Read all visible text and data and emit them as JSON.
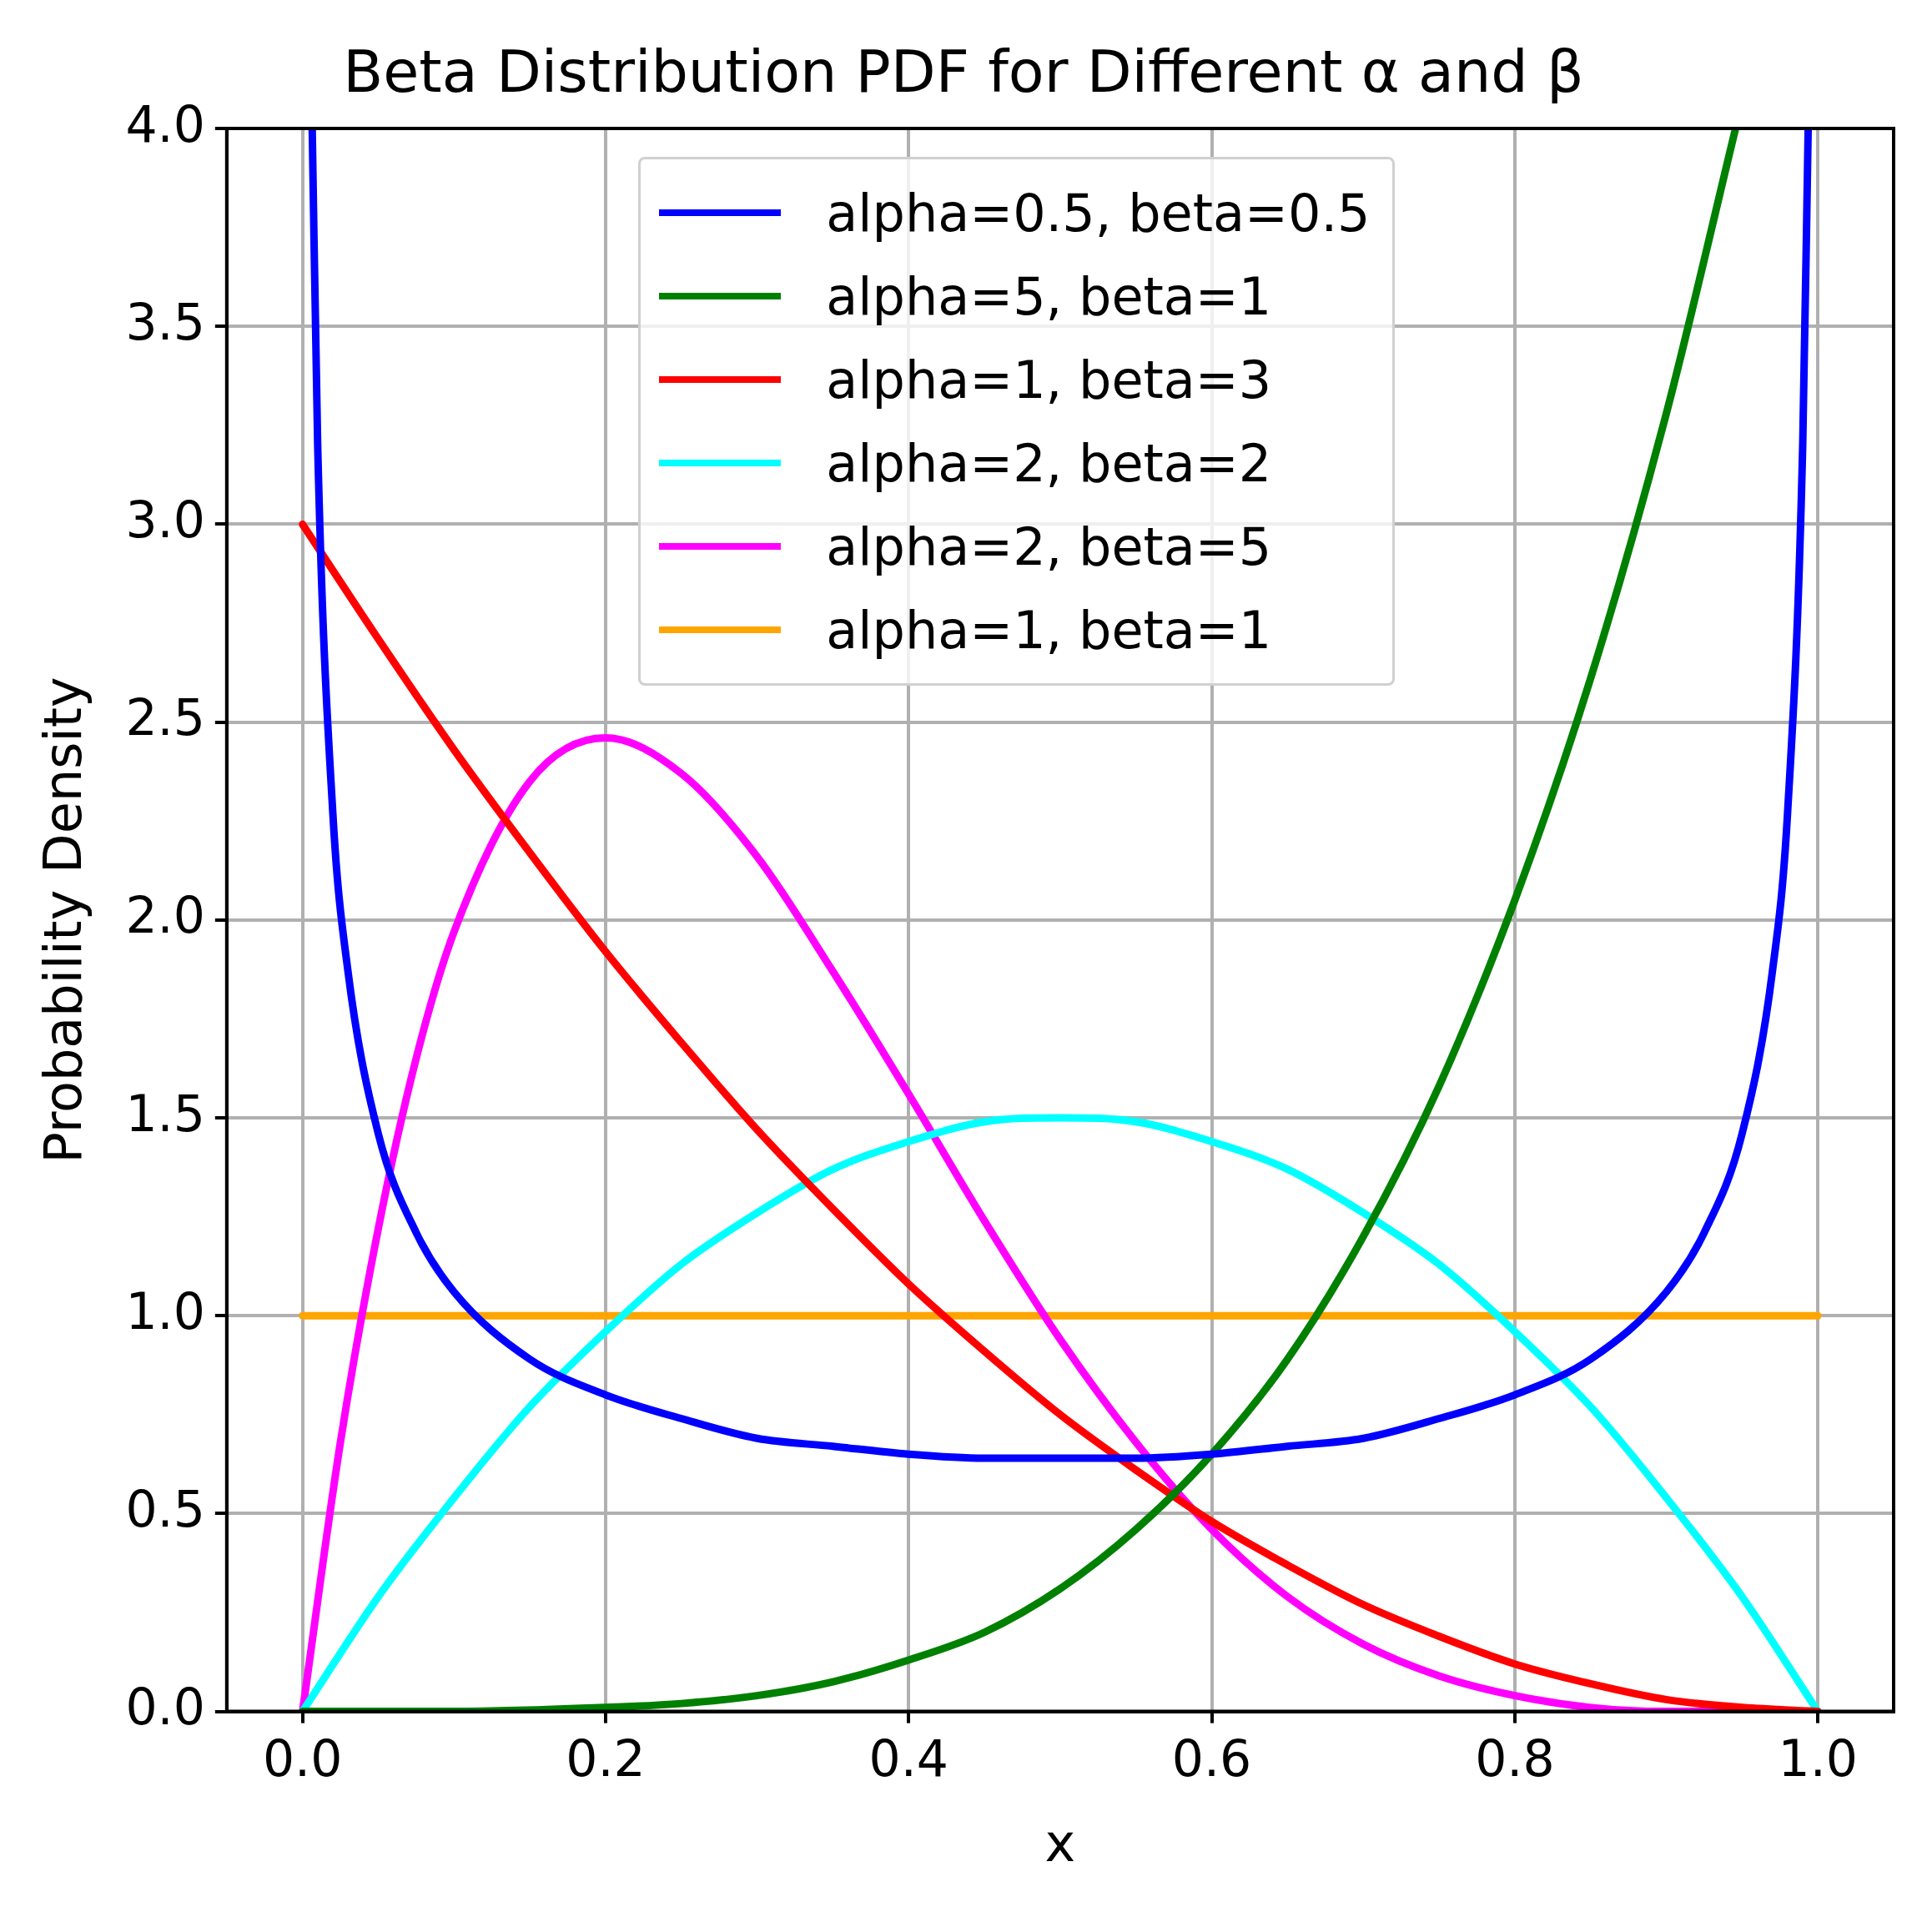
{
  "chart_data": {
    "type": "line",
    "title": "Beta Distribution PDF for Different α and β",
    "xlabel": "x",
    "ylabel": "Probability Density",
    "xlim": [
      -0.05,
      1.05
    ],
    "xticks": [
      {
        "value": 0,
        "label": "0.0"
      },
      {
        "value": 0.2,
        "label": "0.2"
      },
      {
        "value": 0.4,
        "label": "0.4"
      },
      {
        "value": 0.6,
        "label": "0.6"
      },
      {
        "value": 0.8,
        "label": "0.8"
      },
      {
        "value": 1,
        "label": "1.0"
      }
    ],
    "ylim": [
      0,
      4
    ],
    "yticks": [
      {
        "value": 0,
        "label": "0.0"
      },
      {
        "value": 0.5,
        "label": "0.5"
      },
      {
        "value": 1,
        "label": "1.0"
      },
      {
        "value": 1.5,
        "label": "1.5"
      },
      {
        "value": 2,
        "label": "2.0"
      },
      {
        "value": 2.5,
        "label": "2.5"
      },
      {
        "value": 3,
        "label": "3.0"
      },
      {
        "value": 3.5,
        "label": "3.5"
      },
      {
        "value": 4,
        "label": "4.0"
      }
    ],
    "grid": true,
    "legend": "top",
    "marker": "none",
    "line_style": "solid",
    "series": [
      {
        "name": "alpha=0.5, beta=0.5",
        "color": "#0000ff",
        "x": [
          0.0064,
          0.01,
          0.02,
          0.03,
          0.05,
          0.075,
          0.1,
          0.15,
          0.2,
          0.25,
          0.3,
          0.35,
          0.4,
          0.45,
          0.5,
          0.55,
          0.6,
          0.65,
          0.7,
          0.75,
          0.8,
          0.85,
          0.9,
          0.925,
          0.95,
          0.97,
          0.98,
          0.99,
          0.9936
        ],
        "values": [
          4.0,
          3.2,
          2.27,
          1.87,
          1.46,
          1.21,
          1.06,
          0.89,
          0.8,
          0.74,
          0.69,
          0.67,
          0.65,
          0.64,
          0.64,
          0.64,
          0.65,
          0.67,
          0.69,
          0.74,
          0.8,
          0.89,
          1.06,
          1.21,
          1.46,
          1.87,
          2.27,
          3.2,
          4.0
        ]
      },
      {
        "name": "alpha=5, beta=1",
        "color": "#008000",
        "x": [
          0,
          0.1,
          0.2,
          0.25,
          0.3,
          0.35,
          0.4,
          0.45,
          0.5,
          0.55,
          0.6,
          0.65,
          0.7,
          0.75,
          0.8,
          0.85,
          0.9,
          0.9457
        ],
        "values": [
          0,
          0,
          0.01,
          0.02,
          0.04,
          0.075,
          0.13,
          0.2,
          0.31,
          0.46,
          0.65,
          0.89,
          1.2,
          1.58,
          2.05,
          2.61,
          3.28,
          4.0
        ]
      },
      {
        "name": "alpha=1, beta=3",
        "color": "#ff0000",
        "x": [
          0,
          0.05,
          0.1,
          0.15,
          0.2,
          0.25,
          0.3,
          0.35,
          0.4,
          0.45,
          0.5,
          0.55,
          0.6,
          0.65,
          0.7,
          0.75,
          0.8,
          0.85,
          0.9,
          0.95,
          1
        ],
        "values": [
          3,
          2.71,
          2.43,
          2.17,
          1.92,
          1.69,
          1.47,
          1.27,
          1.08,
          0.91,
          0.75,
          0.61,
          0.48,
          0.37,
          0.27,
          0.19,
          0.12,
          0.07,
          0.03,
          0.01,
          0
        ]
      },
      {
        "name": "alpha=2, beta=2",
        "color": "#00ffff",
        "x": [
          0,
          0.05,
          0.1,
          0.15,
          0.2,
          0.25,
          0.3,
          0.35,
          0.4,
          0.45,
          0.5,
          0.55,
          0.6,
          0.65,
          0.7,
          0.75,
          0.8,
          0.85,
          0.9,
          0.95,
          1
        ],
        "values": [
          0,
          0.29,
          0.54,
          0.77,
          0.96,
          1.13,
          1.26,
          1.37,
          1.44,
          1.49,
          1.5,
          1.49,
          1.44,
          1.37,
          1.26,
          1.13,
          0.96,
          0.77,
          0.54,
          0.29,
          0
        ]
      },
      {
        "name": "alpha=2, beta=5",
        "color": "#ff00ff",
        "x": [
          0,
          0.025,
          0.05,
          0.075,
          0.1,
          0.15,
          0.2,
          0.25,
          0.3,
          0.35,
          0.4,
          0.45,
          0.5,
          0.55,
          0.6,
          0.65,
          0.7,
          0.75,
          0.8,
          0.85,
          0.9,
          0.95,
          1
        ],
        "values": [
          0,
          0.68,
          1.22,
          1.65,
          1.97,
          2.35,
          2.46,
          2.37,
          2.16,
          1.87,
          1.56,
          1.24,
          0.94,
          0.68,
          0.46,
          0.29,
          0.17,
          0.09,
          0.04,
          0.01,
          0,
          0,
          0
        ]
      },
      {
        "name": "alpha=1, beta=1",
        "color": "#ffa500",
        "x": [
          0,
          1
        ],
        "values": [
          1,
          1
        ]
      }
    ]
  }
}
